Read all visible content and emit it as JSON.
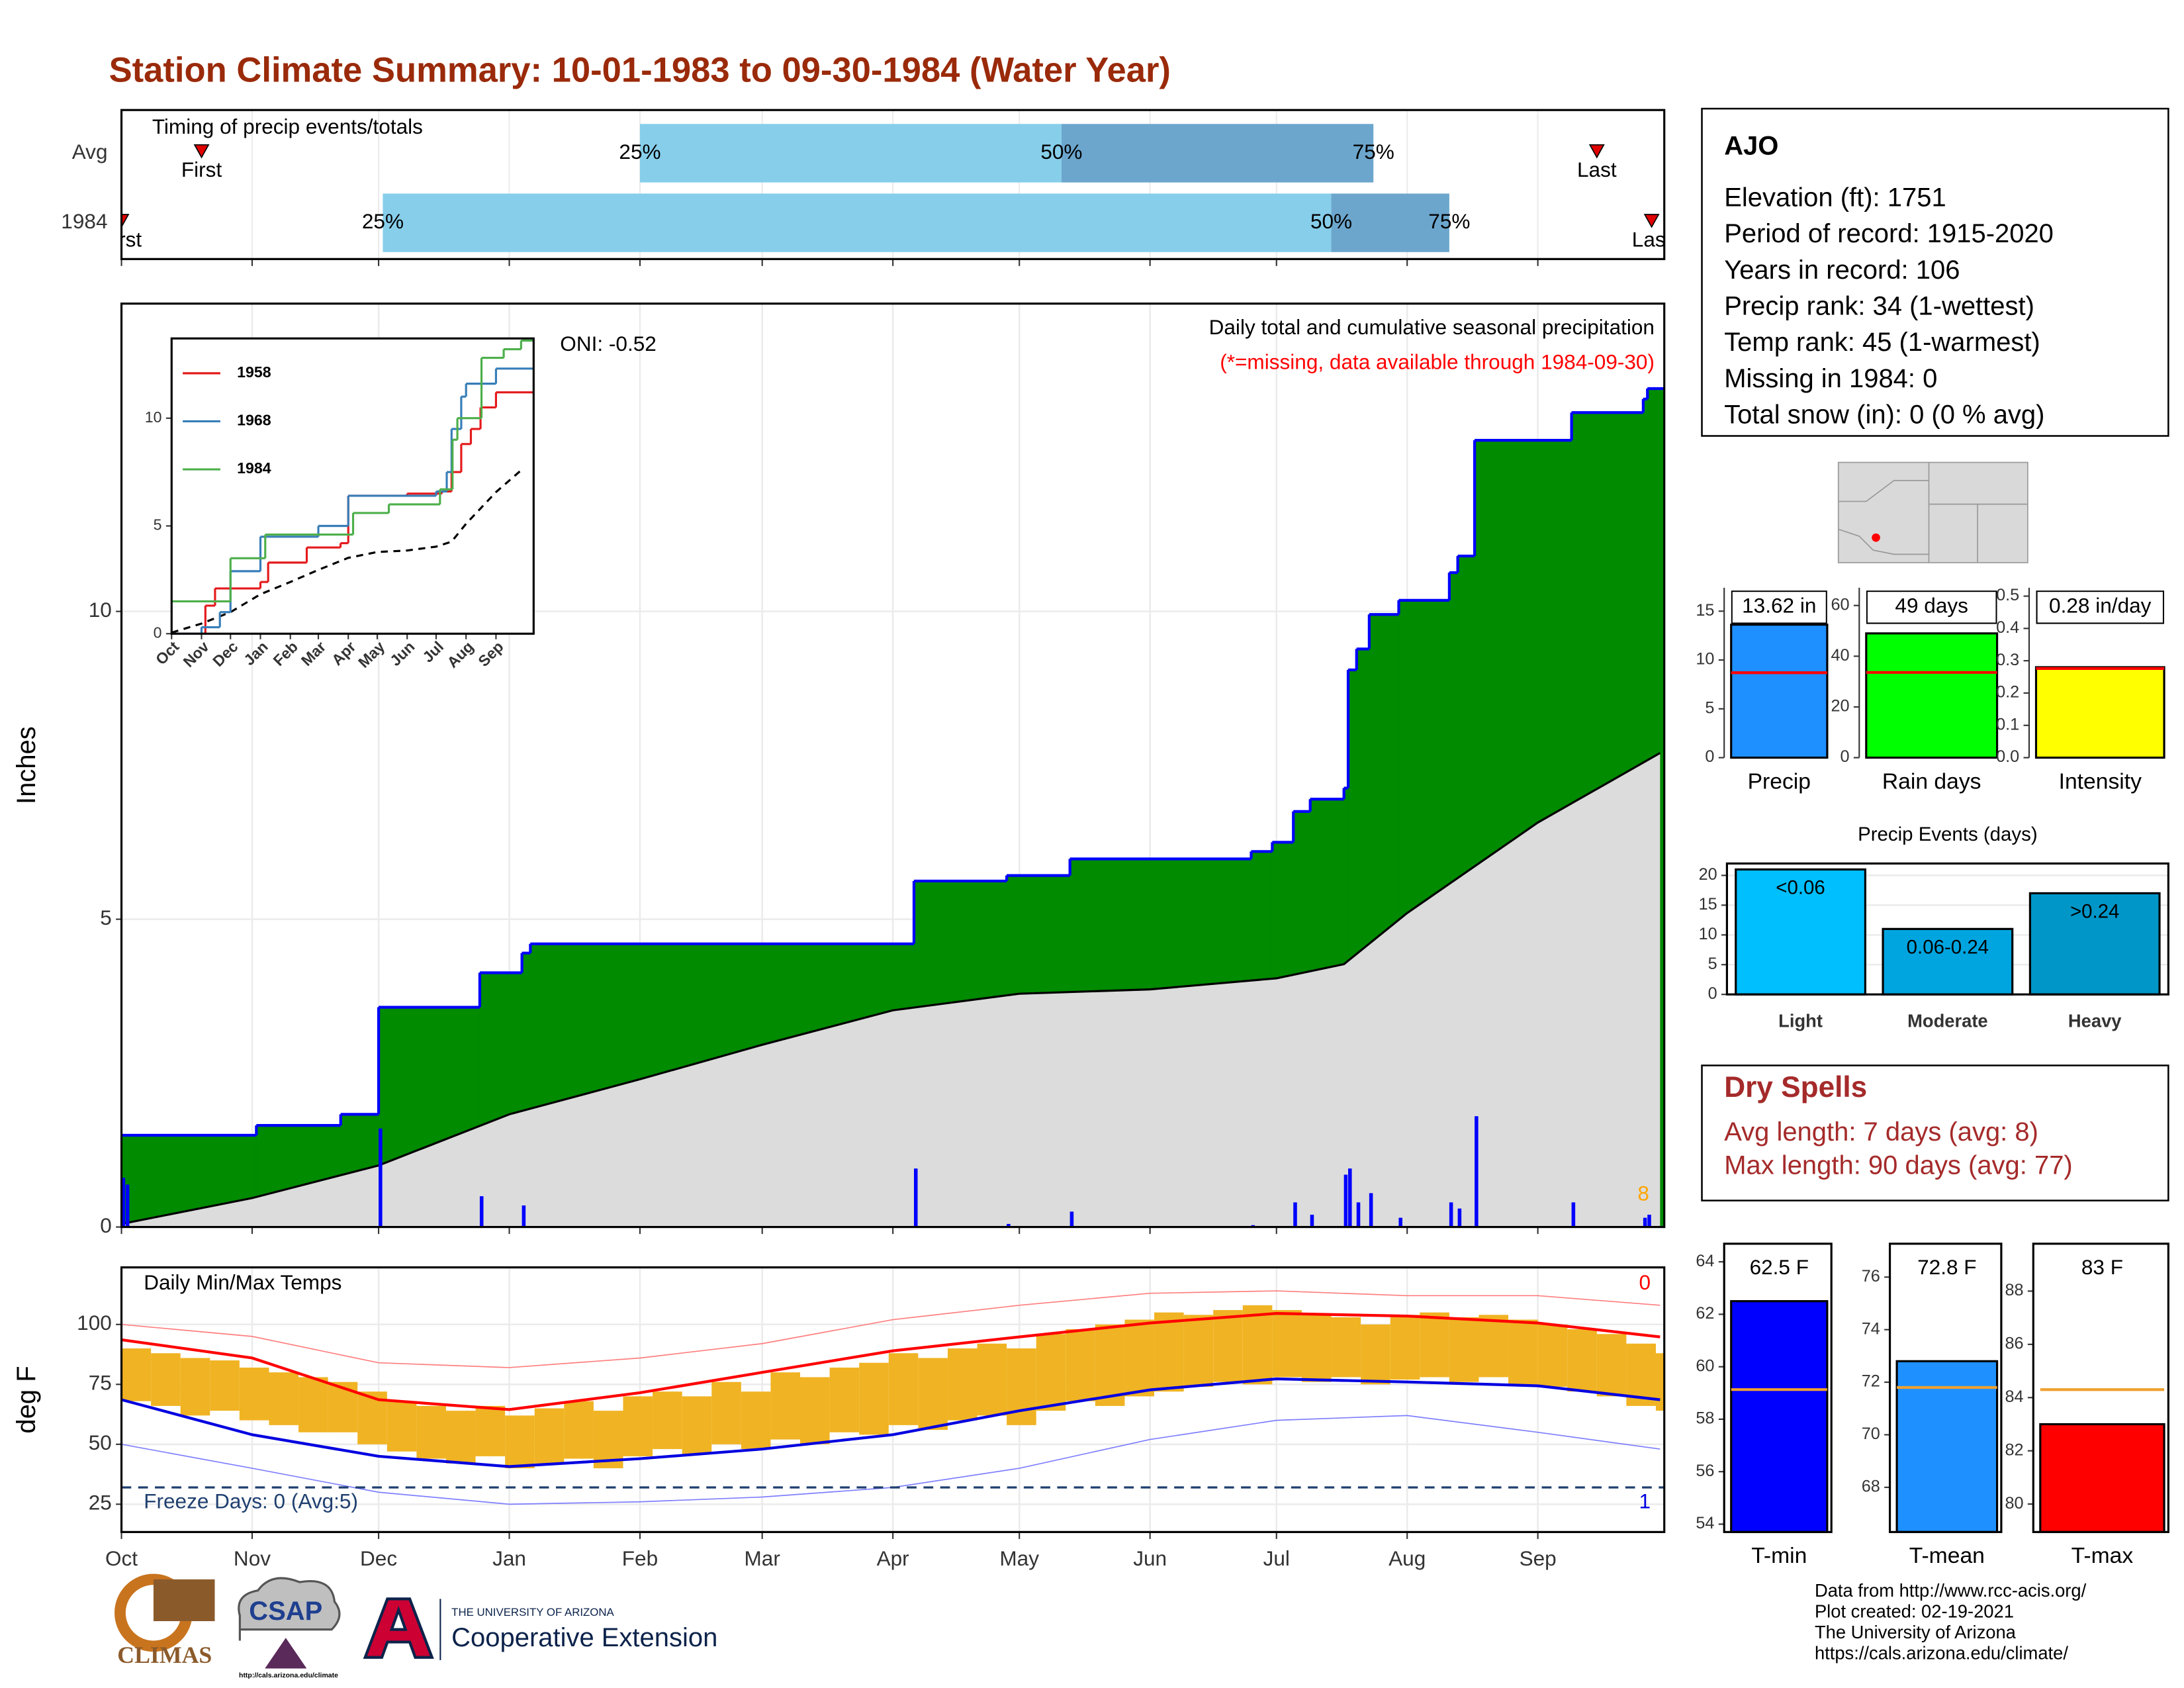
{
  "title": "Station Climate Summary: 10-01-1983 to 09-30-1984 (Water Year)",
  "chart_data": [
    {
      "type": "timing",
      "title": "Timing of precip events/totals",
      "xlim": [
        0,
        366
      ],
      "xticks": [
        0,
        31,
        61,
        92,
        123,
        152,
        183,
        213,
        244,
        274,
        305,
        336
      ],
      "rows": [
        {
          "name": "Avg",
          "first": 19,
          "q25": 123,
          "q50": 223,
          "q75": 297,
          "last": 350
        },
        {
          "name": "1984",
          "first": 0,
          "q25": 62,
          "q50": 287,
          "q75": 315,
          "last": 363
        }
      ],
      "first_label": "First",
      "last_label": "Last",
      "q25_label": "25%",
      "q50_label": "50%",
      "q75_label": "75%",
      "colors": [
        "#87ceeb",
        "#6ca6cd"
      ],
      "marker_color": "#e00000"
    },
    {
      "type": "cumulative",
      "title": "Daily total and cumulative seasonal precipitation",
      "subtitle": "(*=missing, data available through 1984-09-30)",
      "annotation": "ONI: -0.52",
      "record_days": 8,
      "y_label": "Inches",
      "xlim": [
        0,
        366
      ],
      "ylim": [
        0,
        15
      ],
      "yticks": [
        0,
        5,
        10
      ],
      "xticks": [
        0,
        31,
        61,
        92,
        123,
        152,
        183,
        213,
        244,
        274,
        305,
        336
      ],
      "grid": true,
      "cumulative": {
        "x": [
          0,
          32,
          52,
          61,
          85,
          95,
          97,
          188,
          210,
          225,
          268,
          273,
          278,
          282,
          290,
          291,
          293,
          296,
          303,
          315,
          317,
          321,
          344,
          361,
          362
        ],
        "values": [
          1.49,
          1.65,
          1.83,
          3.57,
          4.13,
          4.45,
          4.6,
          5.62,
          5.71,
          5.98,
          6.1,
          6.25,
          6.75,
          6.95,
          7.13,
          9.05,
          9.39,
          9.95,
          10.18,
          10.63,
          10.9,
          12.78,
          13.23,
          13.45,
          13.62
        ],
        "color": "#008b00",
        "line_color": "#0000ff"
      },
      "average": {
        "x": [
          0,
          31,
          61,
          92,
          123,
          152,
          183,
          213,
          244,
          274,
          290,
          305,
          336,
          365
        ],
        "values": [
          0.05,
          0.47,
          1.0,
          1.83,
          2.4,
          2.96,
          3.52,
          3.79,
          3.86,
          4.04,
          4.27,
          5.1,
          6.57,
          7.7
        ],
        "color": "#dcdcdc",
        "line_color": "#000000"
      },
      "daily": {
        "x": [
          0,
          1,
          61,
          85,
          95,
          188,
          210,
          225,
          268,
          278,
          282,
          290,
          291,
          293,
          296,
          303,
          315,
          317,
          321,
          344,
          361,
          362
        ],
        "values": [
          0.8,
          0.69,
          1.6,
          0.5,
          0.35,
          0.95,
          0.05,
          0.25,
          0.03,
          0.4,
          0.2,
          0.85,
          0.95,
          0.4,
          0.55,
          0.15,
          0.4,
          0.3,
          1.8,
          0.4,
          0.15,
          0.2
        ],
        "color": "#0000ff"
      }
    },
    {
      "type": "line",
      "xlim": [
        0,
        375
      ],
      "ylim": [
        0,
        13.7
      ],
      "yticks": [
        0,
        5,
        10
      ],
      "xticks": [
        {
          "value": 0,
          "label": "Oct"
        },
        {
          "value": 31,
          "label": "Nov"
        },
        {
          "value": 61,
          "label": "Dec"
        },
        {
          "value": 92,
          "label": "Jan"
        },
        {
          "value": 123,
          "label": "Feb"
        },
        {
          "value": 152,
          "label": "Mar"
        },
        {
          "value": 183,
          "label": "Apr"
        },
        {
          "value": 213,
          "label": "May"
        },
        {
          "value": 244,
          "label": "Jun"
        },
        {
          "value": 274,
          "label": "Jul"
        },
        {
          "value": 305,
          "label": "Aug"
        },
        {
          "value": 336,
          "label": "Sep"
        }
      ],
      "series": [
        {
          "name": "1958",
          "color": "#e41a1c",
          "x": [
            0,
            35,
            45,
            92,
            100,
            140,
            175,
            183,
            244,
            280,
            290,
            300,
            310,
            320,
            336
          ],
          "values": [
            0,
            1.3,
            2.1,
            2.4,
            3.3,
            4.0,
            4.2,
            6.4,
            6.5,
            6.6,
            7.5,
            8.8,
            9.5,
            10.5,
            11.2
          ]
        },
        {
          "name": "1968",
          "color": "#377eb8",
          "x": [
            0,
            31,
            50,
            61,
            92,
            152,
            183,
            274,
            285,
            290,
            300,
            305,
            336
          ],
          "values": [
            0,
            0.3,
            1.0,
            2.9,
            4.5,
            5.0,
            6.4,
            6.6,
            7.5,
            9.5,
            11.0,
            11.6,
            12.3
          ]
        },
        {
          "name": "1984",
          "color": "#4daf4a",
          "x": [
            0,
            61,
            97,
            188,
            225,
            278,
            291,
            296,
            321,
            344,
            362
          ],
          "values": [
            1.5,
            3.5,
            4.6,
            5.6,
            6.0,
            6.7,
            9.0,
            10.0,
            12.8,
            13.2,
            13.6
          ]
        }
      ],
      "average": {
        "x": [
          0,
          31,
          61,
          92,
          123,
          152,
          183,
          213,
          244,
          274,
          290,
          305,
          336,
          365
        ],
        "values": [
          0.05,
          0.47,
          1.0,
          1.83,
          2.4,
          2.96,
          3.52,
          3.79,
          3.86,
          4.04,
          4.27,
          5.1,
          6.57,
          7.7
        ],
        "color": "#000000"
      }
    },
    {
      "type": "range",
      "title": "Daily Min/Max Temps",
      "y_label": "deg F",
      "xlim": [
        0,
        366
      ],
      "ylim": [
        13.4,
        123.8
      ],
      "yticks": [
        25,
        50,
        75,
        100
      ],
      "grid": true,
      "xticks": [
        {
          "value": 0,
          "label": "Oct"
        },
        {
          "value": 31,
          "label": "Nov"
        },
        {
          "value": 61,
          "label": "Dec"
        },
        {
          "value": 92,
          "label": "Jan"
        },
        {
          "value": 123,
          "label": "Feb"
        },
        {
          "value": 152,
          "label": "Mar"
        },
        {
          "value": 183,
          "label": "Apr"
        },
        {
          "value": 213,
          "label": "May"
        },
        {
          "value": 244,
          "label": "Jun"
        },
        {
          "value": 274,
          "label": "Jul"
        },
        {
          "value": 305,
          "label": "Aug"
        },
        {
          "value": 336,
          "label": "Sep"
        }
      ],
      "records": [
        {
          "x": [
            0,
            31,
            61,
            92,
            123,
            152,
            183,
            213,
            244,
            274,
            305,
            336,
            365
          ],
          "values": [
            100,
            95,
            84,
            82,
            86,
            92,
            102,
            108,
            113,
            114,
            112,
            112,
            108
          ],
          "color": "#ff7f7f",
          "width": 0.8
        },
        {
          "x": [
            0,
            31,
            61,
            92,
            123,
            152,
            183,
            213,
            244,
            274,
            305,
            336,
            365
          ],
          "values": [
            50,
            40,
            30,
            25,
            26,
            28,
            32,
            40,
            52,
            60,
            62,
            55,
            48
          ],
          "color": "#7f7fff",
          "width": 0.8
        }
      ],
      "observed": {
        "x": [
          0,
          7,
          14,
          21,
          28,
          35,
          42,
          49,
          56,
          63,
          70,
          77,
          84,
          91,
          98,
          105,
          112,
          119,
          126,
          133,
          140,
          147,
          154,
          161,
          168,
          175,
          182,
          189,
          196,
          203,
          210,
          217,
          224,
          231,
          238,
          245,
          252,
          259,
          266,
          273,
          280,
          287,
          294,
          301,
          308,
          315,
          322,
          329,
          336,
          343,
          350,
          357,
          364
        ],
        "low": [
          68,
          66,
          62,
          64,
          60,
          58,
          55,
          55,
          50,
          47,
          44,
          42,
          45,
          40,
          42,
          44,
          40,
          45,
          48,
          46,
          50,
          48,
          52,
          50,
          55,
          54,
          58,
          56,
          60,
          62,
          58,
          64,
          68,
          66,
          70,
          72,
          74,
          76,
          75,
          78,
          76,
          78,
          75,
          77,
          78,
          76,
          78,
          75,
          74,
          72,
          70,
          66,
          64
        ],
        "high": [
          90,
          88,
          86,
          85,
          82,
          80,
          78,
          76,
          72,
          68,
          66,
          64,
          66,
          62,
          65,
          68,
          64,
          70,
          72,
          70,
          76,
          72,
          80,
          78,
          82,
          84,
          88,
          86,
          90,
          92,
          90,
          96,
          98,
          100,
          102,
          105,
          104,
          106,
          108,
          106,
          104,
          103,
          100,
          104,
          105,
          103,
          104,
          102,
          100,
          98,
          96,
          92,
          88
        ],
        "color": "#f0b323"
      },
      "normals": [
        {
          "x": [
            0,
            31,
            61,
            92,
            123,
            152,
            183,
            213,
            244,
            274,
            305,
            336,
            365
          ],
          "values": [
            93.6,
            86,
            68.6,
            64.5,
            71.5,
            80,
            89,
            94.8,
            100.6,
            104.6,
            103.5,
            100.6,
            94.8
          ],
          "color": "#ff0000",
          "width": 2
        },
        {
          "x": [
            0,
            31,
            61,
            92,
            123,
            152,
            183,
            213,
            244,
            274,
            305,
            336,
            365
          ],
          "values": [
            68.6,
            54,
            45,
            40.7,
            44,
            48,
            54,
            64,
            72.7,
            77.3,
            76,
            74.4,
            68.6
          ],
          "color": "#0000e0",
          "width": 2
        }
      ],
      "freeze": {
        "value": 32,
        "label": "Freeze Days: 0 (Avg:5)",
        "color": "#1f3f6f"
      },
      "record_high_days": 0,
      "record_low_days": 1
    },
    {
      "type": "bar",
      "categories": [
        "Precip"
      ],
      "values": [
        13.62
      ],
      "value_labels": [
        "13.62 in"
      ],
      "average": 8.7,
      "average_color": "#ff0000",
      "color": "#1e90ff",
      "ylim": [
        0,
        17.4
      ],
      "yticks": [
        0,
        5,
        10,
        15
      ]
    },
    {
      "type": "bar",
      "categories": [
        "Rain days"
      ],
      "values": [
        49
      ],
      "value_labels": [
        "49 days"
      ],
      "average": 33.6,
      "average_color": "#ff0000",
      "color": "#00ff00",
      "ylim": [
        0,
        67
      ],
      "yticks": [
        0,
        20,
        40,
        60
      ]
    },
    {
      "type": "bar",
      "categories": [
        "Intensity"
      ],
      "values": [
        0.28
      ],
      "value_labels": [
        "0.28 in/day"
      ],
      "average": 0.276,
      "average_color": "#ff0000",
      "color": "#ffff00",
      "ylim": [
        0,
        0.526
      ],
      "yticks": [
        {
          "value": 0,
          "label": "0.0"
        },
        0.1,
        0.2,
        0.3,
        0.4,
        0.5
      ]
    },
    {
      "type": "bar",
      "title": "Precip Events (days)",
      "categories": [
        "Light",
        "Moderate",
        "Heavy"
      ],
      "values": [
        21,
        11,
        17
      ],
      "bar_labels": [
        "<0.06",
        "0.06-0.24",
        ">0.24"
      ],
      "colors": [
        "#00bfff",
        "#00a5e0",
        "#0096c8"
      ],
      "ylim": [
        0,
        22
      ],
      "yticks": [
        0,
        5,
        10,
        15,
        20
      ],
      "grid": true
    },
    {
      "type": "bar",
      "categories": [
        "T-min"
      ],
      "values": [
        62.5
      ],
      "value_labels": [
        "62.5 F"
      ],
      "average": 59.13,
      "average_color": "#f0a030",
      "color": "#0000ff",
      "ylim": [
        53.7,
        64.69
      ],
      "yticks": [
        54,
        56,
        58,
        60,
        62,
        64
      ]
    },
    {
      "type": "bar",
      "categories": [
        "T-mean"
      ],
      "values": [
        72.8
      ],
      "value_labels": [
        "72.8 F"
      ],
      "average": 71.8,
      "average_color": "#f0a030",
      "color": "#1e90ff",
      "ylim": [
        66.3,
        77.27
      ],
      "yticks": [
        68,
        70,
        72,
        74,
        76
      ]
    },
    {
      "type": "bar",
      "categories": [
        "T-max"
      ],
      "values": [
        83
      ],
      "value_labels": [
        "83 F"
      ],
      "average": 84.3,
      "average_color": "#f0a030",
      "color": "#ff0000",
      "ylim": [
        78.95,
        89.78
      ],
      "yticks": [
        80,
        82,
        84,
        86,
        88
      ]
    }
  ],
  "station": {
    "name": "AJO",
    "lines": [
      "Elevation (ft): 1751",
      "Period of record: 1915-2020",
      "Years in record: 106",
      "Precip rank: 34 (1-wettest)",
      "Temp rank: 45 (1-warmest)",
      "Missing in 1984: 0",
      "Total snow (in): 0 (0 % avg)"
    ]
  },
  "dry_spells": {
    "title": "Dry Spells",
    "lines": [
      "Avg length: 7 days (avg: 8)",
      "Max length: 90 days (avg: 77)"
    ]
  },
  "footer": {
    "lines": [
      "Data from http://www.rcc-acis.org/",
      "Plot created: 02-19-2021",
      "The University of Arizona",
      "https://cals.arizona.edu/climate/"
    ]
  },
  "logos": {
    "climas": "CLIMAS",
    "csap": "CSAP",
    "csap_url": "http://cals.arizona.edu/climate",
    "ua": "THE UNIVERSITY OF ARIZONA",
    "extension": "Cooperative Extension"
  }
}
